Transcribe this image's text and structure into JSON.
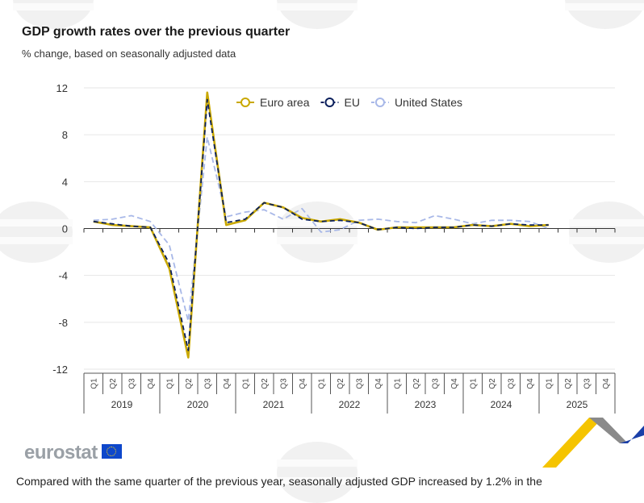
{
  "title": "GDP growth rates over the previous quarter",
  "subtitle": "% change, based on seasonally adjusted data",
  "brand": "eurostat",
  "footer_text": "Compared with the same quarter of the previous year, seasonally adjusted GDP increased by 1.2% in the",
  "colors": {
    "euro_area": "#c9a800",
    "eu": "#0a1f5c",
    "us": "#a8b8e8",
    "grid": "#e6e6e6",
    "axis": "#333333"
  },
  "chart_data": {
    "type": "line",
    "title": "GDP growth rates over the previous quarter",
    "subtitle": "% change, based on seasonally adjusted data",
    "ylim": [
      -12,
      12
    ],
    "yticks": [
      12,
      8,
      4,
      0,
      -4,
      -8,
      -12
    ],
    "grid": true,
    "legend_position": "top",
    "years": [
      "2019",
      "2020",
      "2021",
      "2022",
      "2023",
      "2024",
      "2025"
    ],
    "quarters": [
      "Q1",
      "Q2",
      "Q3",
      "Q4"
    ],
    "categories": [
      "2019 Q1",
      "2019 Q2",
      "2019 Q3",
      "2019 Q4",
      "2020 Q1",
      "2020 Q2",
      "2020 Q3",
      "2020 Q4",
      "2021 Q1",
      "2021 Q2",
      "2021 Q3",
      "2021 Q4",
      "2022 Q1",
      "2022 Q2",
      "2022 Q3",
      "2022 Q4",
      "2023 Q1",
      "2023 Q2",
      "2023 Q3",
      "2023 Q4",
      "2024 Q1",
      "2024 Q2",
      "2024 Q3",
      "2024 Q4",
      "2025 Q1",
      "2025 Q2",
      "2025 Q3",
      "2025 Q4"
    ],
    "series": [
      {
        "name": "Euro area",
        "style": "solid",
        "values": [
          0.6,
          0.3,
          0.2,
          0.1,
          -3.4,
          -11.0,
          11.6,
          0.3,
          0.7,
          2.2,
          1.8,
          0.9,
          0.6,
          0.8,
          0.5,
          -0.1,
          0.1,
          0.1,
          0.1,
          0.1,
          0.3,
          0.2,
          0.4,
          0.2,
          0.3,
          null,
          null,
          null
        ]
      },
      {
        "name": "EU",
        "style": "dashed",
        "values": [
          0.6,
          0.4,
          0.2,
          0.1,
          -3.0,
          -10.4,
          11.0,
          0.5,
          0.8,
          2.2,
          1.8,
          0.8,
          0.6,
          0.7,
          0.5,
          -0.1,
          0.1,
          0.0,
          0.1,
          0.1,
          0.3,
          0.2,
          0.4,
          0.3,
          0.3,
          null,
          null,
          null
        ]
      },
      {
        "name": "United States",
        "style": "dashed",
        "values": [
          0.7,
          0.8,
          1.1,
          0.6,
          -1.4,
          -7.9,
          7.8,
          1.0,
          1.4,
          1.6,
          0.8,
          1.7,
          -0.3,
          -0.1,
          0.7,
          0.8,
          0.6,
          0.5,
          1.1,
          0.8,
          0.4,
          0.7,
          0.7,
          0.6,
          0.0,
          null,
          null,
          null
        ]
      }
    ]
  }
}
